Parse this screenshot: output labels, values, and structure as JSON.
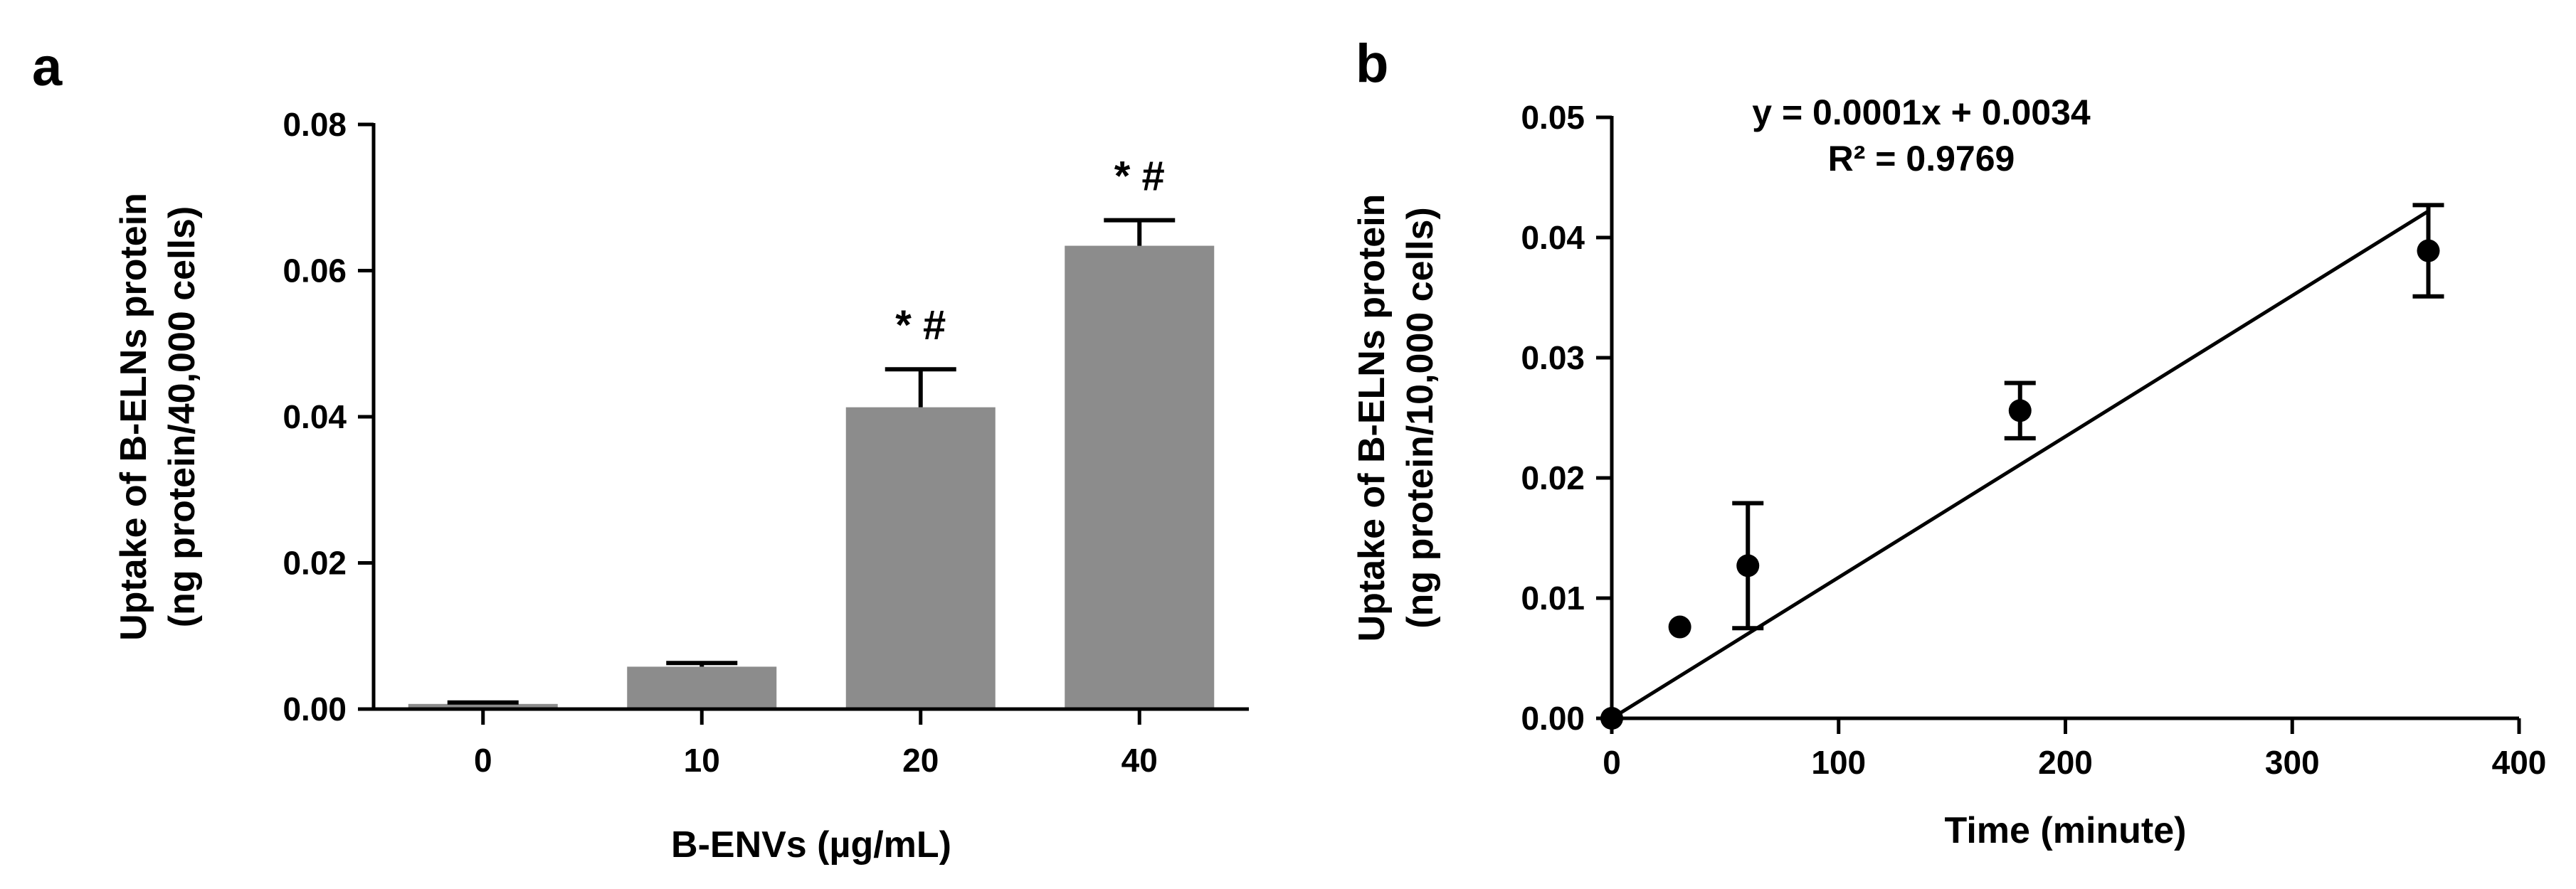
{
  "colors": {
    "bar_fill": "#8c8c8c",
    "ink": "#000000",
    "background": "#ffffff"
  },
  "chart_data": [
    {
      "panel": "a",
      "type": "bar",
      "categories": [
        "0",
        "10",
        "20",
        "40"
      ],
      "values": [
        0.0007,
        0.0058,
        0.0413,
        0.0634
      ],
      "errors": [
        0.0002,
        0.0005,
        0.0052,
        0.0035
      ],
      "annotations": [
        "",
        "",
        "* #",
        "* #"
      ],
      "xlabel": "B-ENVs (µg/mL)",
      "ylabel": [
        "Uptake of B-ELNs protein",
        "(ng protein/40,000 cells)"
      ],
      "ylim": [
        0,
        0.08
      ],
      "yticks": [
        "0.00",
        "0.02",
        "0.04",
        "0.06",
        "0.08"
      ],
      "grid": false
    },
    {
      "panel": "b",
      "type": "scatter",
      "points": [
        {
          "x": 0,
          "y": 0.0,
          "err": 0.0
        },
        {
          "x": 30,
          "y": 0.0076,
          "err": 0.0
        },
        {
          "x": 60,
          "y": 0.0127,
          "err": 0.0052
        },
        {
          "x": 180,
          "y": 0.0256,
          "err": 0.0023
        },
        {
          "x": 360,
          "y": 0.0389,
          "err": 0.0038
        }
      ],
      "fit": {
        "x0": 0,
        "y0": 0.0,
        "x1": 360,
        "y1": 0.0422
      },
      "equation": "y = 0.0001x + 0.0034",
      "r_squared": "R² = 0.9769",
      "xlabel": "Time (minute)",
      "ylabel": [
        "Uptake of B-ELNs protein",
        "(ng protein/10,000 cells)"
      ],
      "xlim": [
        0,
        400
      ],
      "ylim": [
        0,
        0.05
      ],
      "xticks": [
        "0",
        "100",
        "200",
        "300",
        "400"
      ],
      "yticks": [
        "0.00",
        "0.01",
        "0.02",
        "0.03",
        "0.04",
        "0.05"
      ],
      "grid": false
    }
  ]
}
